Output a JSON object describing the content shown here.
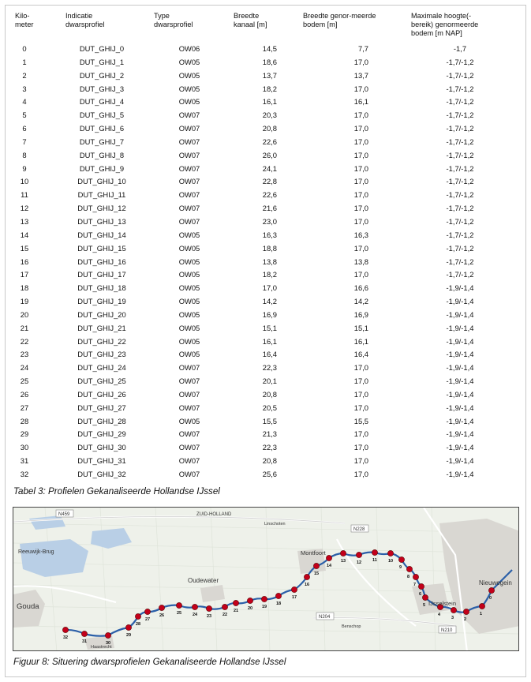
{
  "table": {
    "headers": {
      "kilometer": "Kilo-\nmeter",
      "indicatie": "Indicatie\ndwarsprofiel",
      "type": "Type\ndwarsprofiel",
      "breedte_kanaal": "Breedte\nkanaal [m]",
      "breedte_bodem": "Breedte genor-meerde\nbodem [m]",
      "max_hoogte": "Maximale hoogte(-\nbereik) genormeerde\nbodem [m NAP]"
    },
    "rows": [
      {
        "km": "0",
        "ind": "DUT_GHIJ_0",
        "type": "OW06",
        "bk": "14,5",
        "bb": "7,7",
        "mh": "-1,7"
      },
      {
        "km": "1",
        "ind": "DUT_GHIJ_1",
        "type": "OW05",
        "bk": "18,6",
        "bb": "17,0",
        "mh": "-1,7/-1,2"
      },
      {
        "km": "2",
        "ind": "DUT_GHIJ_2",
        "type": "OW05",
        "bk": "13,7",
        "bb": "13,7",
        "mh": "-1,7/-1,2"
      },
      {
        "km": "3",
        "ind": "DUT_GHIJ_3",
        "type": "OW05",
        "bk": "18,2",
        "bb": "17,0",
        "mh": "-1,7/-1,2"
      },
      {
        "km": "4",
        "ind": "DUT_GHIJ_4",
        "type": "OW05",
        "bk": "16,1",
        "bb": "16,1",
        "mh": "-1,7/-1,2"
      },
      {
        "km": "5",
        "ind": "DUT_GHIJ_5",
        "type": "OW07",
        "bk": "20,3",
        "bb": "17,0",
        "mh": "-1,7/-1,2"
      },
      {
        "km": "6",
        "ind": "DUT_GHIJ_6",
        "type": "OW07",
        "bk": "20,8",
        "bb": "17,0",
        "mh": "-1,7/-1,2"
      },
      {
        "km": "7",
        "ind": "DUT_GHIJ_7",
        "type": "OW07",
        "bk": "22,6",
        "bb": "17,0",
        "mh": "-1,7/-1,2"
      },
      {
        "km": "8",
        "ind": "DUT_GHIJ_8",
        "type": "OW07",
        "bk": "26,0",
        "bb": "17,0",
        "mh": "-1,7/-1,2"
      },
      {
        "km": "9",
        "ind": "DUT_GHIJ_9",
        "type": "OW07",
        "bk": "24,1",
        "bb": "17,0",
        "mh": "-1,7/-1,2"
      },
      {
        "km": "10",
        "ind": "DUT_GHIJ_10",
        "type": "OW07",
        "bk": "22,8",
        "bb": "17,0",
        "mh": "-1,7/-1,2"
      },
      {
        "km": "11",
        "ind": "DUT_GHIJ_11",
        "type": "OW07",
        "bk": "22,6",
        "bb": "17,0",
        "mh": "-1,7/-1,2"
      },
      {
        "km": "12",
        "ind": "DUT_GHIJ_12",
        "type": "OW07",
        "bk": "21,6",
        "bb": "17,0",
        "mh": "-1,7/-1,2"
      },
      {
        "km": "13",
        "ind": "DUT_GHIJ_13",
        "type": "OW07",
        "bk": "23,0",
        "bb": "17,0",
        "mh": "-1,7/-1,2"
      },
      {
        "km": "14",
        "ind": "DUT_GHIJ_14",
        "type": "OW05",
        "bk": "16,3",
        "bb": "16,3",
        "mh": "-1,7/-1,2"
      },
      {
        "km": "15",
        "ind": "DUT_GHIJ_15",
        "type": "OW05",
        "bk": "18,8",
        "bb": "17,0",
        "mh": "-1,7/-1,2"
      },
      {
        "km": "16",
        "ind": "DUT_GHIJ_16",
        "type": "OW05",
        "bk": "13,8",
        "bb": "13,8",
        "mh": "-1,7/-1,2"
      },
      {
        "km": "17",
        "ind": "DUT_GHIJ_17",
        "type": "OW05",
        "bk": "18,2",
        "bb": "17,0",
        "mh": "-1,7/-1,2"
      },
      {
        "km": "18",
        "ind": "DUT_GHIJ_18",
        "type": "OW05",
        "bk": "17,0",
        "bb": "16,6",
        "mh": "-1,9/-1,4"
      },
      {
        "km": "19",
        "ind": "DUT_GHIJ_19",
        "type": "OW05",
        "bk": "14,2",
        "bb": "14,2",
        "mh": "-1,9/-1,4"
      },
      {
        "km": "20",
        "ind": "DUT_GHIJ_20",
        "type": "OW05",
        "bk": "16,9",
        "bb": "16,9",
        "mh": "-1,9/-1,4"
      },
      {
        "km": "21",
        "ind": "DUT_GHIJ_21",
        "type": "OW05",
        "bk": "15,1",
        "bb": "15,1",
        "mh": "-1,9/-1,4"
      },
      {
        "km": "22",
        "ind": "DUT_GHIJ_22",
        "type": "OW05",
        "bk": "16,1",
        "bb": "16,1",
        "mh": "-1,9/-1,4"
      },
      {
        "km": "23",
        "ind": "DUT_GHIJ_23",
        "type": "OW05",
        "bk": "16,4",
        "bb": "16,4",
        "mh": "-1,9/-1,4"
      },
      {
        "km": "24",
        "ind": "DUT_GHIJ_24",
        "type": "OW07",
        "bk": "22,3",
        "bb": "17,0",
        "mh": "-1,9/-1,4"
      },
      {
        "km": "25",
        "ind": "DUT_GHIJ_25",
        "type": "OW07",
        "bk": "20,1",
        "bb": "17,0",
        "mh": "-1,9/-1,4"
      },
      {
        "km": "26",
        "ind": "DUT_GHIJ_26",
        "type": "OW07",
        "bk": "20,8",
        "bb": "17,0",
        "mh": "-1,9/-1,4"
      },
      {
        "km": "27",
        "ind": "DUT_GHIJ_27",
        "type": "OW07",
        "bk": "20,5",
        "bb": "17,0",
        "mh": "-1,9/-1,4"
      },
      {
        "km": "28",
        "ind": "DUT_GHIJ_28",
        "type": "OW05",
        "bk": "15,5",
        "bb": "15,5",
        "mh": "-1,9/-1,4"
      },
      {
        "km": "29",
        "ind": "DUT_GHIJ_29",
        "type": "OW07",
        "bk": "21,3",
        "bb": "17,0",
        "mh": "-1,9/-1,4"
      },
      {
        "km": "30",
        "ind": "DUT_GHIJ_30",
        "type": "OW07",
        "bk": "22,3",
        "bb": "17,0",
        "mh": "-1,9/-1,4"
      },
      {
        "km": "31",
        "ind": "DUT_GHIJ_31",
        "type": "OW07",
        "bk": "20,8",
        "bb": "17,0",
        "mh": "-1,9/-1,4"
      },
      {
        "km": "32",
        "ind": "DUT_GHIJ_32",
        "type": "OW07",
        "bk": "25,6",
        "bb": "17,0",
        "mh": "-1,9/-1,4"
      }
    ]
  },
  "table_caption": "Tabel 3: Profielen Gekanaliseerde Hollandse IJssel",
  "map": {
    "place_labels": {
      "gouda": "Gouda",
      "reeuwijk": "Reeuwijk-Brug",
      "oudewater": "Oudewater",
      "montfoort": "Montfoort",
      "ijsselstein": "IJsselstein",
      "nieuwegein": "Nieuwegein",
      "zuid_holland": "ZUID-HOLLAND",
      "linschoten": "Linschoten",
      "benschop": "Benschop",
      "haastrecht": "Haastrecht"
    },
    "road_labels": {
      "n459": "N459",
      "n228": "N228",
      "n204": "N204",
      "n210": "N210"
    },
    "point_labels": [
      "0",
      "1",
      "2",
      "3",
      "4",
      "5",
      "6",
      "7",
      "8",
      "9",
      "10",
      "11",
      "12",
      "13",
      "14",
      "15",
      "16",
      "17",
      "18",
      "19",
      "20",
      "21",
      "22",
      "23",
      "24",
      "25",
      "26",
      "27",
      "28",
      "29",
      "30",
      "31",
      "32"
    ],
    "colors": {
      "river": "#2b5fa8",
      "marker": "#c3001a",
      "marker_stroke": "#5a0000",
      "water": "#b9cfe6",
      "land": "#eef1ea",
      "road": "#ffffff"
    }
  },
  "figure_caption": "Figuur 8: Situering dwarsprofielen Gekanaliseerde Hollandse IJssel"
}
